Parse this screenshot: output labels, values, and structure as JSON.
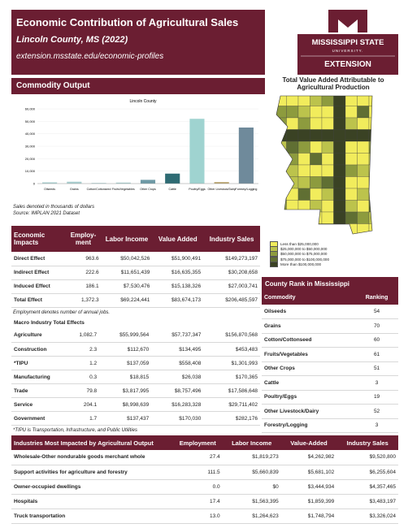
{
  "header": {
    "title": "Economic Contribution of Agricultural Sales",
    "subtitle": "Lincoln County, MS (2022)",
    "url": "extension.msstate.edu/economic-profiles"
  },
  "logo": {
    "line1": "MISSISSIPPI STATE",
    "line2": "UNIVERSITY.",
    "line3": "EXTENSION"
  },
  "map": {
    "title": "Total Value Added Attributable to Agricultural Production",
    "legend": [
      {
        "label": "Less than $25,000,000",
        "color": "#f1ec5c"
      },
      {
        "label": "$25,000,000 to $50,000,000",
        "color": "#bcc34c"
      },
      {
        "label": "$50,000,000 to $75,000,000",
        "color": "#8d9b3e"
      },
      {
        "label": "$75,000,000 to $100,000,000",
        "color": "#606f33"
      },
      {
        "label": "More than $100,000,000",
        "color": "#3a4224"
      }
    ]
  },
  "commodity_output": {
    "heading": "Commodity Output",
    "chart_data": {
      "type": "bar",
      "title": "Lincoln County",
      "categories": [
        "Oilseeds",
        "Grains",
        "Cotton/Cottonseed",
        "Fruits/Vegetables",
        "Other Crops",
        "Cattle",
        "Poultry/Eggs",
        "Other Livestock/Dairy",
        "Forestry/Logging"
      ],
      "values": [
        1000,
        1500,
        500,
        800,
        3000,
        8000,
        52000,
        1200,
        45000
      ],
      "colors": [
        "#a9cfd0",
        "#a9cfd0",
        "#a9cfd0",
        "#a9cfd0",
        "#6f9aa6",
        "#2e6b73",
        "#9fd3d0",
        "#b9a36a",
        "#6f8a9b"
      ],
      "ylim": [
        0,
        60000
      ],
      "yticks": [
        0,
        {
          "value": 10000,
          "label": "10,000"
        },
        {
          "value": 20000,
          "label": "20,000"
        },
        {
          "value": 30000,
          "label": "30,000"
        },
        {
          "value": 40000,
          "label": "40,000"
        },
        {
          "value": 50000,
          "label": "50,000"
        },
        {
          "value": 60000,
          "label": "60,000"
        }
      ]
    },
    "notes": [
      "Sales denoted in thousands of dollars",
      "Source: IMPLAN 2021 Dataset"
    ]
  },
  "economic_impacts": {
    "columns": [
      "Economic Impacts",
      "Employ-ment",
      "Labor Income",
      "Value Added",
      "Industry Sales"
    ],
    "rows": [
      [
        "Direct Effect",
        "963.6",
        "$50,042,526",
        "$51,900,491",
        "$149,273,197"
      ],
      [
        "Indirect Effect",
        "222.6",
        "$11,651,439",
        "$16,635,355",
        "$30,208,658"
      ],
      [
        "Induced Effect",
        "186.1",
        "$7,530,476",
        "$15,138,326",
        "$27,003,741"
      ],
      [
        "Total Effect",
        "1,372.3",
        "$69,224,441",
        "$83,674,173",
        "$206,485,597"
      ]
    ],
    "note": "Employment denotes number of annual jobs.",
    "macro_title": "Macro Industry Total Effects",
    "macro_rows": [
      [
        "Agriculture",
        "1,082.7",
        "$55,999,564",
        "$57,737,347",
        "$156,870,568"
      ],
      [
        "Construction",
        "2.3",
        "$112,670",
        "$134,495",
        "$453,483"
      ],
      [
        "*TIPU",
        "1.2",
        "$137,059",
        "$558,408",
        "$1,301,993"
      ],
      [
        "Manufacturing",
        "0.3",
        "$18,815",
        "$26,038",
        "$170,365"
      ],
      [
        "Trade",
        "79.8",
        "$3,817,995",
        "$8,757,496",
        "$17,586,648"
      ],
      [
        "Service",
        "204.1",
        "$8,998,639",
        "$16,283,328",
        "$29,711,402"
      ],
      [
        "Government",
        "1.7",
        "$137,437",
        "$170,030",
        "$282,176"
      ]
    ],
    "macro_note": "*TIPU is Transportation, Infrastructure, and Public Utilities"
  },
  "county_rank": {
    "title": "County Rank in Mississippi",
    "columns": [
      "Commodity",
      "Ranking"
    ],
    "rows": [
      [
        "Oilseeds",
        "54"
      ],
      [
        "Grains",
        "70"
      ],
      [
        "Cotton/Cottonseed",
        "60"
      ],
      [
        "Fruits/Vegetables",
        "61"
      ],
      [
        "Other Crops",
        "51"
      ],
      [
        "Cattle",
        "3"
      ],
      [
        "Poultry/Eggs",
        "19"
      ],
      [
        "Other Livestock/Dairy",
        "52"
      ],
      [
        "Forestry/Logging",
        "3"
      ]
    ]
  },
  "industries": {
    "columns": [
      "Industries Most Impacted by Agricultural Output",
      "Employment",
      "Labor Income",
      "Value-Added",
      "Industry Sales"
    ],
    "rows": [
      [
        "Wholesale-Other nondurable goods merchant whole",
        "27.4",
        "$1,819,273",
        "$4,262,982",
        "$9,520,800"
      ],
      [
        "Support activities for agriculture and forestry",
        "111.5",
        "$5,660,839",
        "$5,681,102",
        "$6,255,604"
      ],
      [
        "Owner-occupied dwellings",
        "0.0",
        "$0",
        "$3,444,934",
        "$4,357,465"
      ],
      [
        "Hospitals",
        "17.4",
        "$1,563,395",
        "$1,859,399",
        "$3,483,197"
      ],
      [
        "Truck transportation",
        "13.0",
        "$1,264,623",
        "$1,748,794",
        "$3,326,024"
      ]
    ]
  }
}
